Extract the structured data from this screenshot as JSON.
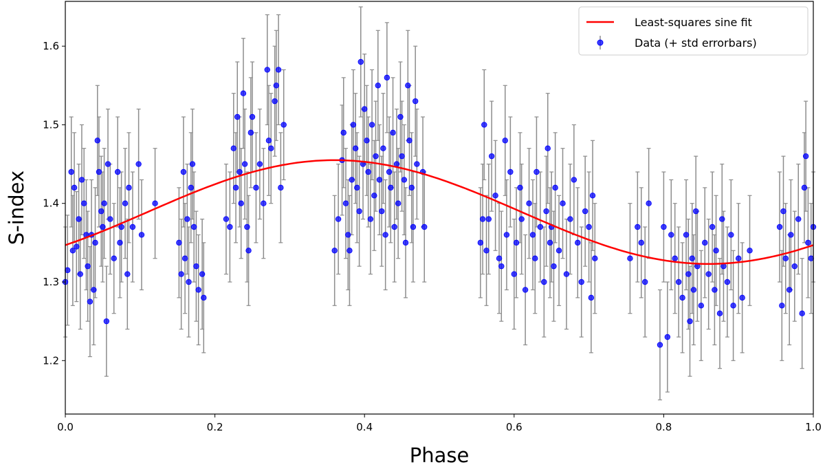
{
  "chart_data": {
    "type": "scatter",
    "xlabel": "Phase",
    "ylabel": "S-index",
    "xlim": [
      0.0,
      1.0
    ],
    "ylim": [
      1.132,
      1.657
    ],
    "xticks": [
      "0.0",
      "0.2",
      "0.4",
      "0.6",
      "0.8",
      "1.0"
    ],
    "yticks": [
      "1.2",
      "1.3",
      "1.4",
      "1.5",
      "1.6"
    ],
    "grid": false,
    "legend_position": "top-right",
    "colors": {
      "data": "#0000ff",
      "errorbar": "#8c8c8c",
      "fit": "#ff0000"
    },
    "series": [
      {
        "name": "Least-squares sine fit",
        "type": "line",
        "model": {
          "mean": 1.389,
          "amplitude": 0.066,
          "period": 1.0,
          "peak_phase": 0.36
        }
      },
      {
        "name": "Data (+ std errorbars)",
        "type": "scatter",
        "y_err": 0.07,
        "points": [
          [
            0.0,
            1.3
          ],
          [
            0.003,
            1.315
          ],
          [
            0.008,
            1.44
          ],
          [
            0.01,
            1.34
          ],
          [
            0.012,
            1.42
          ],
          [
            0.015,
            1.345
          ],
          [
            0.018,
            1.38
          ],
          [
            0.02,
            1.31
          ],
          [
            0.022,
            1.43
          ],
          [
            0.025,
            1.4
          ],
          [
            0.028,
            1.36
          ],
          [
            0.03,
            1.32
          ],
          [
            0.033,
            1.275
          ],
          [
            0.035,
            1.36
          ],
          [
            0.038,
            1.29
          ],
          [
            0.04,
            1.35
          ],
          [
            0.043,
            1.48
          ],
          [
            0.045,
            1.44
          ],
          [
            0.048,
            1.39
          ],
          [
            0.05,
            1.37
          ],
          [
            0.052,
            1.4
          ],
          [
            0.055,
            1.25
          ],
          [
            0.057,
            1.45
          ],
          [
            0.06,
            1.38
          ],
          [
            0.065,
            1.33
          ],
          [
            0.07,
            1.44
          ],
          [
            0.073,
            1.35
          ],
          [
            0.075,
            1.37
          ],
          [
            0.08,
            1.4
          ],
          [
            0.083,
            1.31
          ],
          [
            0.085,
            1.42
          ],
          [
            0.09,
            1.37
          ],
          [
            0.098,
            1.45
          ],
          [
            0.102,
            1.36
          ],
          [
            0.12,
            1.4
          ],
          [
            0.152,
            1.35
          ],
          [
            0.155,
            1.31
          ],
          [
            0.158,
            1.44
          ],
          [
            0.16,
            1.33
          ],
          [
            0.163,
            1.38
          ],
          [
            0.165,
            1.3
          ],
          [
            0.168,
            1.42
          ],
          [
            0.17,
            1.45
          ],
          [
            0.172,
            1.37
          ],
          [
            0.175,
            1.32
          ],
          [
            0.178,
            1.29
          ],
          [
            0.183,
            1.31
          ],
          [
            0.185,
            1.28
          ],
          [
            0.215,
            1.38
          ],
          [
            0.22,
            1.37
          ],
          [
            0.225,
            1.47
          ],
          [
            0.228,
            1.42
          ],
          [
            0.23,
            1.51
          ],
          [
            0.233,
            1.44
          ],
          [
            0.235,
            1.4
          ],
          [
            0.238,
            1.54
          ],
          [
            0.24,
            1.45
          ],
          [
            0.243,
            1.37
          ],
          [
            0.245,
            1.34
          ],
          [
            0.248,
            1.49
          ],
          [
            0.25,
            1.51
          ],
          [
            0.255,
            1.42
          ],
          [
            0.26,
            1.45
          ],
          [
            0.265,
            1.4
          ],
          [
            0.27,
            1.57
          ],
          [
            0.272,
            1.48
          ],
          [
            0.275,
            1.47
          ],
          [
            0.28,
            1.53
          ],
          [
            0.282,
            1.55
          ],
          [
            0.285,
            1.57
          ],
          [
            0.288,
            1.42
          ],
          [
            0.292,
            1.5
          ],
          [
            0.36,
            1.34
          ],
          [
            0.365,
            1.38
          ],
          [
            0.37,
            1.455
          ],
          [
            0.372,
            1.49
          ],
          [
            0.375,
            1.4
          ],
          [
            0.378,
            1.36
          ],
          [
            0.38,
            1.34
          ],
          [
            0.383,
            1.43
          ],
          [
            0.385,
            1.5
          ],
          [
            0.388,
            1.47
          ],
          [
            0.39,
            1.42
          ],
          [
            0.393,
            1.39
          ],
          [
            0.395,
            1.58
          ],
          [
            0.398,
            1.45
          ],
          [
            0.4,
            1.52
          ],
          [
            0.403,
            1.48
          ],
          [
            0.405,
            1.44
          ],
          [
            0.408,
            1.38
          ],
          [
            0.41,
            1.5
          ],
          [
            0.413,
            1.41
          ],
          [
            0.415,
            1.46
          ],
          [
            0.418,
            1.55
          ],
          [
            0.42,
            1.43
          ],
          [
            0.423,
            1.39
          ],
          [
            0.425,
            1.47
          ],
          [
            0.428,
            1.36
          ],
          [
            0.43,
            1.56
          ],
          [
            0.433,
            1.44
          ],
          [
            0.435,
            1.42
          ],
          [
            0.438,
            1.49
          ],
          [
            0.44,
            1.37
          ],
          [
            0.443,
            1.45
          ],
          [
            0.445,
            1.4
          ],
          [
            0.448,
            1.51
          ],
          [
            0.45,
            1.46
          ],
          [
            0.453,
            1.43
          ],
          [
            0.455,
            1.35
          ],
          [
            0.458,
            1.55
          ],
          [
            0.46,
            1.48
          ],
          [
            0.463,
            1.42
          ],
          [
            0.465,
            1.37
          ],
          [
            0.468,
            1.53
          ],
          [
            0.47,
            1.45
          ],
          [
            0.478,
            1.44
          ],
          [
            0.48,
            1.37
          ],
          [
            0.555,
            1.35
          ],
          [
            0.558,
            1.38
          ],
          [
            0.56,
            1.5
          ],
          [
            0.563,
            1.34
          ],
          [
            0.566,
            1.38
          ],
          [
            0.57,
            1.46
          ],
          [
            0.575,
            1.41
          ],
          [
            0.58,
            1.33
          ],
          [
            0.583,
            1.32
          ],
          [
            0.588,
            1.48
          ],
          [
            0.59,
            1.36
          ],
          [
            0.595,
            1.44
          ],
          [
            0.6,
            1.31
          ],
          [
            0.603,
            1.35
          ],
          [
            0.608,
            1.42
          ],
          [
            0.61,
            1.38
          ],
          [
            0.615,
            1.29
          ],
          [
            0.62,
            1.4
          ],
          [
            0.625,
            1.36
          ],
          [
            0.628,
            1.33
          ],
          [
            0.63,
            1.44
          ],
          [
            0.635,
            1.37
          ],
          [
            0.64,
            1.3
          ],
          [
            0.643,
            1.39
          ],
          [
            0.645,
            1.47
          ],
          [
            0.648,
            1.35
          ],
          [
            0.65,
            1.37
          ],
          [
            0.653,
            1.32
          ],
          [
            0.655,
            1.42
          ],
          [
            0.66,
            1.34
          ],
          [
            0.665,
            1.4
          ],
          [
            0.67,
            1.31
          ],
          [
            0.675,
            1.38
          ],
          [
            0.68,
            1.43
          ],
          [
            0.685,
            1.35
          ],
          [
            0.69,
            1.3
          ],
          [
            0.695,
            1.39
          ],
          [
            0.7,
            1.37
          ],
          [
            0.703,
            1.28
          ],
          [
            0.705,
            1.41
          ],
          [
            0.708,
            1.33
          ],
          [
            0.755,
            1.33
          ],
          [
            0.765,
            1.37
          ],
          [
            0.77,
            1.35
          ],
          [
            0.775,
            1.3
          ],
          [
            0.78,
            1.4
          ],
          [
            0.795,
            1.22
          ],
          [
            0.8,
            1.37
          ],
          [
            0.805,
            1.23
          ],
          [
            0.81,
            1.36
          ],
          [
            0.815,
            1.33
          ],
          [
            0.82,
            1.3
          ],
          [
            0.825,
            1.28
          ],
          [
            0.83,
            1.36
          ],
          [
            0.833,
            1.31
          ],
          [
            0.835,
            1.25
          ],
          [
            0.838,
            1.33
          ],
          [
            0.84,
            1.29
          ],
          [
            0.843,
            1.39
          ],
          [
            0.845,
            1.32
          ],
          [
            0.85,
            1.27
          ],
          [
            0.855,
            1.35
          ],
          [
            0.86,
            1.31
          ],
          [
            0.865,
            1.37
          ],
          [
            0.868,
            1.29
          ],
          [
            0.87,
            1.34
          ],
          [
            0.875,
            1.26
          ],
          [
            0.878,
            1.38
          ],
          [
            0.88,
            1.32
          ],
          [
            0.885,
            1.3
          ],
          [
            0.89,
            1.36
          ],
          [
            0.893,
            1.27
          ],
          [
            0.9,
            1.33
          ],
          [
            0.905,
            1.28
          ],
          [
            0.915,
            1.34
          ],
          [
            0.955,
            1.37
          ],
          [
            0.958,
            1.27
          ],
          [
            0.96,
            1.39
          ],
          [
            0.963,
            1.33
          ],
          [
            0.968,
            1.29
          ],
          [
            0.97,
            1.36
          ],
          [
            0.975,
            1.32
          ],
          [
            0.98,
            1.38
          ],
          [
            0.985,
            1.26
          ],
          [
            0.988,
            1.42
          ],
          [
            0.99,
            1.46
          ],
          [
            0.993,
            1.35
          ],
          [
            0.997,
            1.33
          ],
          [
            1.0,
            1.37
          ]
        ]
      }
    ]
  }
}
